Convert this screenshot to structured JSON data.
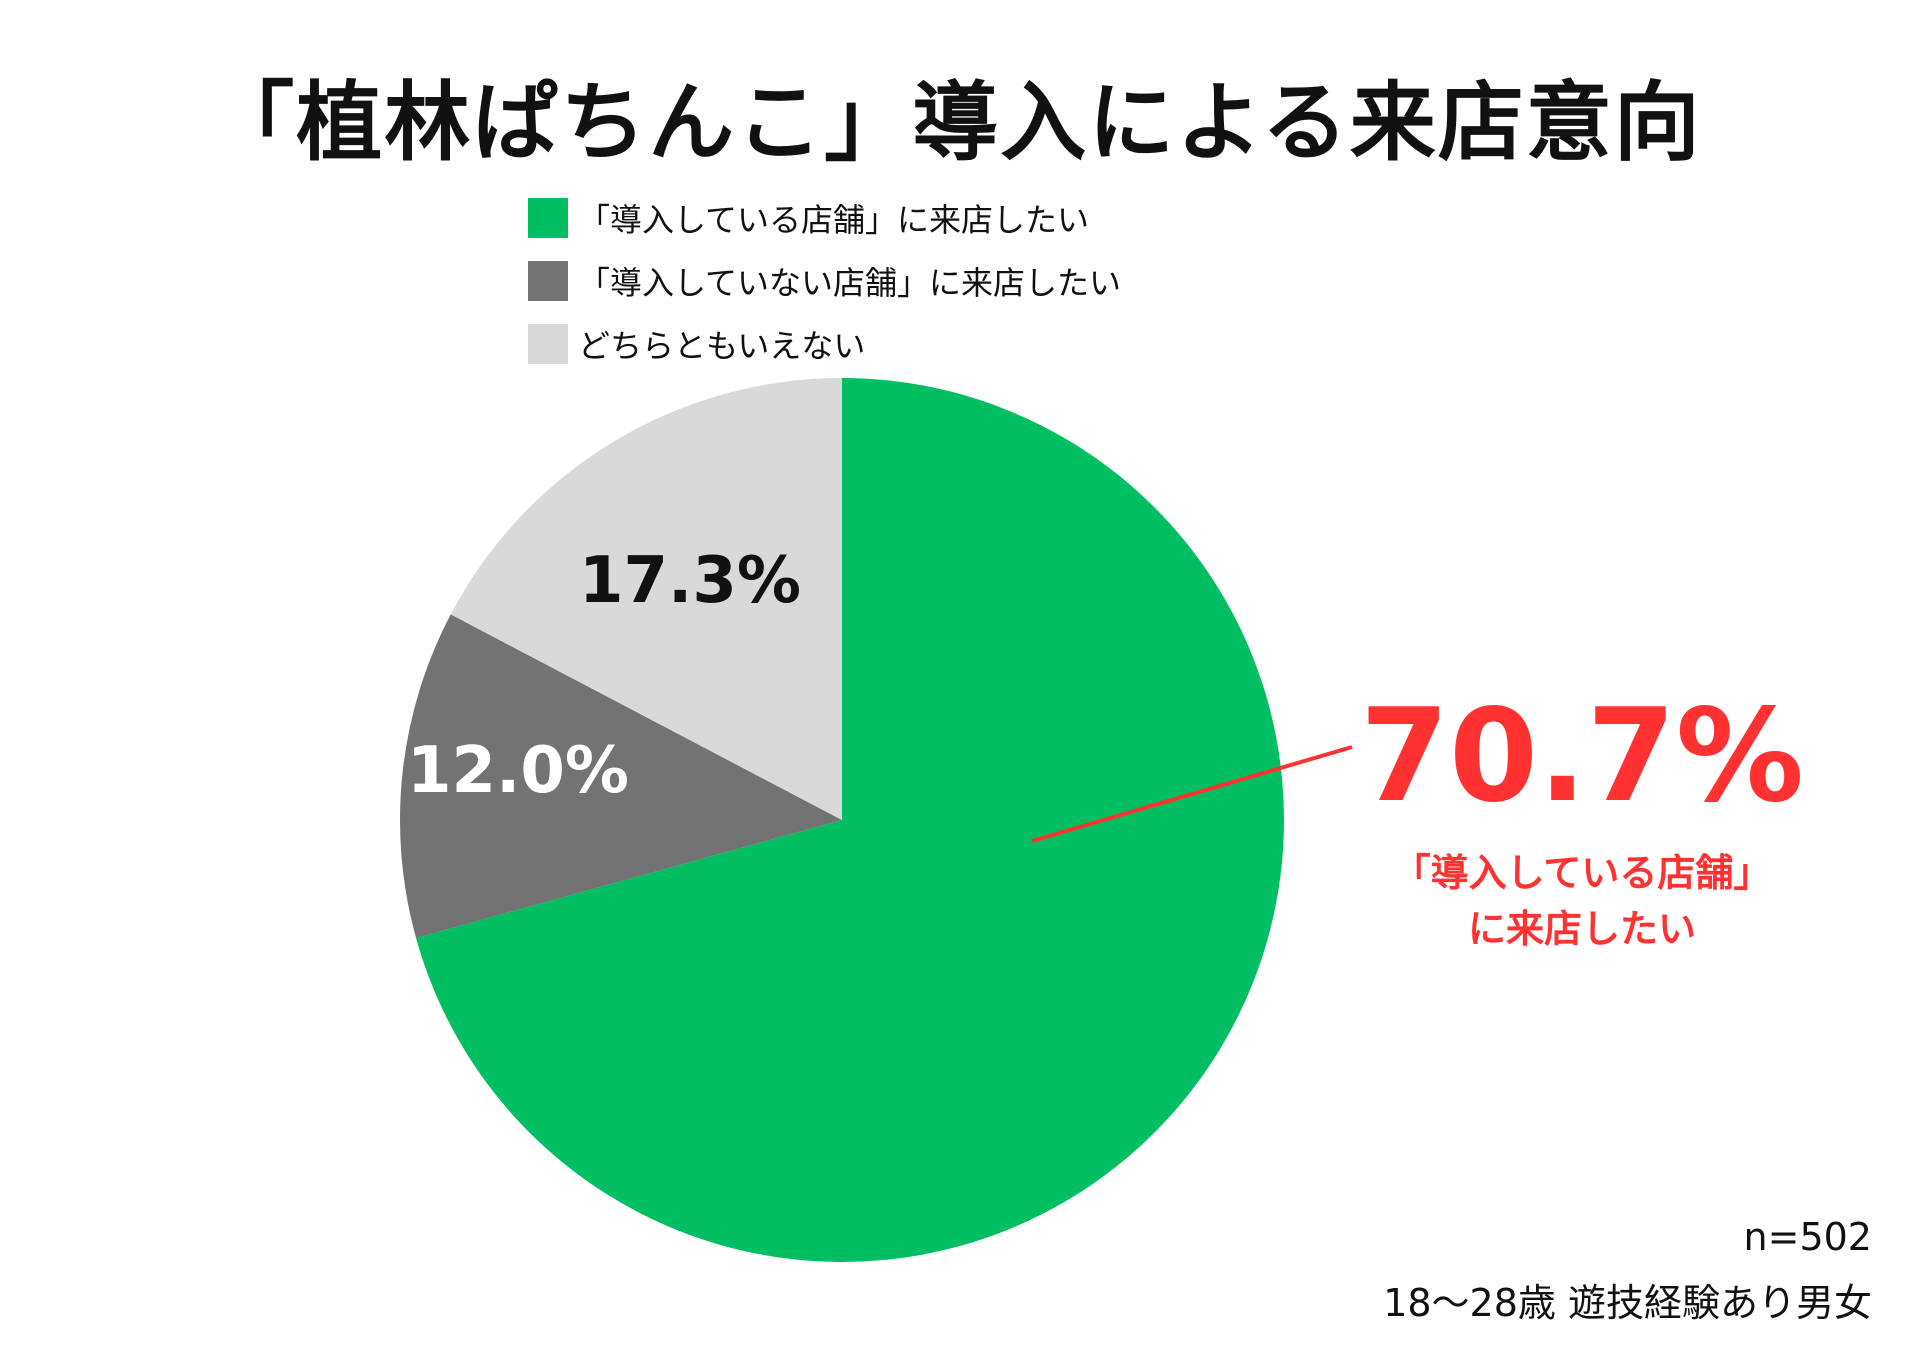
{
  "title": "「植林ぱちんこ」導入による来店意向",
  "legend": [
    {
      "label": "「導入している店舗」に来店したい",
      "color": "#00bf63"
    },
    {
      "label": "「導入していない店舗」に来店したい",
      "color": "#737373"
    },
    {
      "label": "どちらともいえない",
      "color": "#d9d9d9"
    }
  ],
  "chart_data": {
    "type": "pie",
    "start": "12 o'clock",
    "direction": "clockwise",
    "slices": [
      {
        "label": "「導入している店舗」に来店したい",
        "value": 70.7,
        "display": "70.7%",
        "color": "#00bf63",
        "label_color": "#ff3131"
      },
      {
        "label": "「導入していない店舗」に来店したい",
        "value": 12.0,
        "display": "12.0%",
        "color": "#737373",
        "label_color": "#ffffff"
      },
      {
        "label": "どちらともいえない",
        "value": 17.3,
        "display": "17.3%",
        "color": "#d9d9d9",
        "label_color": "#111111"
      }
    ]
  },
  "callout": {
    "value": "70.7%",
    "lines": [
      "「導入している店舗」",
      "に来店したい"
    ],
    "color": "#ff3131"
  },
  "footnote": {
    "sample": "n=502",
    "respondents": "18〜28歳 遊技経験あり男女"
  }
}
